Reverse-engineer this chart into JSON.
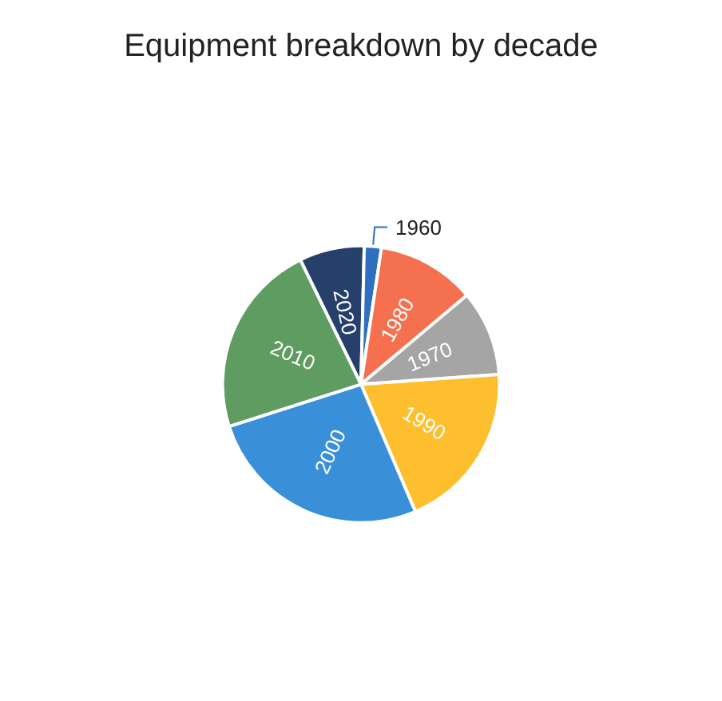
{
  "chart_data": {
    "type": "pie",
    "title": "Equipment breakdown by decade",
    "categories": [
      "2020",
      "1960",
      "1980",
      "1970",
      "1990",
      "2000",
      "2010"
    ],
    "values": [
      7.6,
      2.0,
      11.5,
      10.0,
      19.7,
      26.5,
      22.7
    ],
    "colors": [
      "#26406b",
      "#2e6fc0",
      "#f4704f",
      "#a5a5a5",
      "#fdbf2d",
      "#3a8fd9",
      "#5e9c62"
    ],
    "legend": false
  }
}
